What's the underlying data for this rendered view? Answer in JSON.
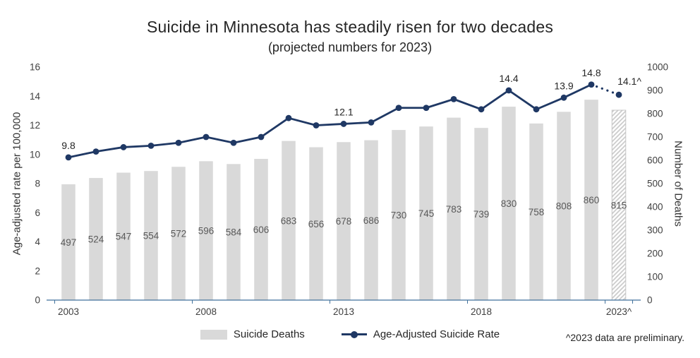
{
  "page": {
    "title": "Suicide in Minnesota has steadily risen for two decades",
    "subtitle": "(projected numbers for 2023)",
    "footnote": "^2023 data are preliminary."
  },
  "colors": {
    "bar": "#d9d9d9",
    "bar_hatch_line": "#cccccc",
    "bar_hatch_stroke": "#c6c6c6",
    "line": "#1f3864",
    "axis_line": "#41719c",
    "tick_text": "#404040",
    "title_text": "#262626"
  },
  "chart_data": {
    "type": "bar+line",
    "x": [
      2003,
      2004,
      2005,
      2006,
      2007,
      2008,
      2009,
      2010,
      2011,
      2012,
      2013,
      2014,
      2015,
      2016,
      2017,
      2018,
      2019,
      2020,
      2021,
      2022,
      2023
    ],
    "x_tick_labels": [
      "2003",
      "2008",
      "2013",
      "2018",
      "2023^"
    ],
    "x_tick_years": [
      2003,
      2008,
      2013,
      2018,
      2023
    ],
    "series": [
      {
        "name": "Suicide Deaths",
        "type": "bar",
        "axis": "right",
        "values": [
          497,
          524,
          547,
          554,
          572,
          596,
          584,
          606,
          683,
          656,
          678,
          686,
          730,
          745,
          783,
          739,
          830,
          758,
          808,
          860,
          815
        ],
        "last_value_preliminary": true
      },
      {
        "name": "Age-Adjusted Suicide Rate",
        "type": "line",
        "axis": "left",
        "values": [
          9.8,
          10.2,
          10.5,
          10.6,
          10.8,
          11.2,
          10.8,
          11.2,
          12.5,
          12.0,
          12.1,
          12.2,
          13.2,
          13.2,
          13.8,
          13.1,
          14.4,
          13.1,
          13.9,
          14.8,
          14.1
        ],
        "last_segment_projected": true
      }
    ],
    "line_point_labels": {
      "2003": "9.8",
      "2013": "12.1",
      "2019": "14.4",
      "2021": "13.9",
      "2022": "14.8",
      "2023": "14.1^"
    },
    "left_axis": {
      "label": "Age-adjusted rate per 100,000",
      "min": 0,
      "max": 16,
      "step": 2
    },
    "right_axis": {
      "label": "Number of Deaths",
      "min": 0,
      "max": 1000,
      "step": 100
    },
    "grid": false,
    "legend_position": "bottom"
  }
}
